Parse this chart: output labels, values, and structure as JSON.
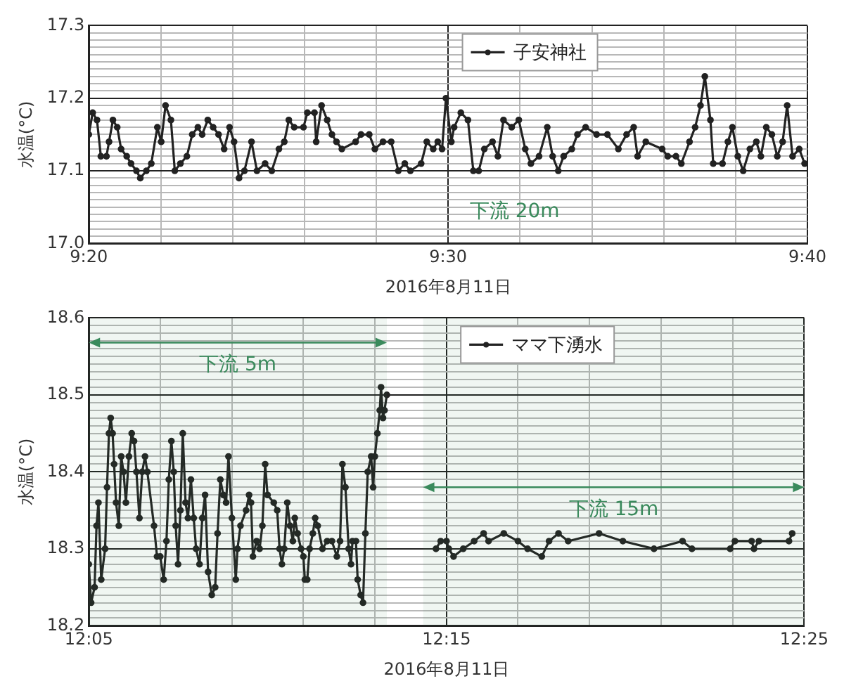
{
  "chart_data": [
    {
      "type": "line",
      "xlabel": "2016年8月11日",
      "ylabel": "水温(°C)",
      "annotations": [
        "下流 20m"
      ],
      "legend": "top",
      "grid": true,
      "marker": "circle",
      "line_style": "solid",
      "xlim": [
        9.3333,
        9.6667
      ],
      "xticks": [
        {
          "value": 9.3333,
          "label": "9:20"
        },
        {
          "value": 9.3667,
          "label": null
        },
        {
          "value": 9.4,
          "label": null
        },
        {
          "value": 9.4333,
          "label": null
        },
        {
          "value": 9.4667,
          "label": null
        },
        {
          "value": 9.5,
          "label": "9:30"
        },
        {
          "value": 9.5333,
          "label": null
        },
        {
          "value": 9.5667,
          "label": null
        },
        {
          "value": 9.6,
          "label": null
        },
        {
          "value": 9.6333,
          "label": null
        },
        {
          "value": 9.6667,
          "label": "9:40"
        }
      ],
      "ylim": [
        17.0,
        17.3
      ],
      "yticks": [
        {
          "value": 17.0,
          "label": "17.0"
        },
        {
          "value": 17.01,
          "label": null
        },
        {
          "value": 17.02,
          "label": null
        },
        {
          "value": 17.03,
          "label": null
        },
        {
          "value": 17.04,
          "label": null
        },
        {
          "value": 17.05,
          "label": null
        },
        {
          "value": 17.06,
          "label": null
        },
        {
          "value": 17.07,
          "label": null
        },
        {
          "value": 17.08,
          "label": null
        },
        {
          "value": 17.09,
          "label": null
        },
        17.1,
        {
          "value": 17.11,
          "label": null
        },
        {
          "value": 17.12,
          "label": null
        },
        {
          "value": 17.13,
          "label": null
        },
        {
          "value": 17.14,
          "label": null
        },
        {
          "value": 17.15,
          "label": null
        },
        {
          "value": 17.16,
          "label": null
        },
        {
          "value": 17.17,
          "label": null
        },
        {
          "value": 17.18,
          "label": null
        },
        {
          "value": 17.19,
          "label": null
        },
        17.2,
        {
          "value": 17.21,
          "label": null
        },
        {
          "value": 17.22,
          "label": null
        },
        {
          "value": 17.23,
          "label": null
        },
        {
          "value": 17.24,
          "label": null
        },
        {
          "value": 17.25,
          "label": null
        },
        {
          "value": 17.26,
          "label": null
        },
        {
          "value": 17.27,
          "label": null
        },
        {
          "value": 17.28,
          "label": null
        },
        {
          "value": 17.29,
          "label": null
        },
        17.3
      ],
      "series": [
        {
          "name": "子安神社",
          "color": "#222222",
          "x": [
            9.3333,
            9.3351,
            9.3371,
            9.3389,
            9.3415,
            9.3427,
            9.3445,
            9.3465,
            9.3483,
            9.3509,
            9.3529,
            9.3554,
            9.3572,
            9.36,
            9.3623,
            9.3651,
            9.3669,
            9.3689,
            9.3714,
            9.3732,
            9.3758,
            9.3788,
            9.3813,
            9.3839,
            9.3859,
            9.3885,
            9.391,
            9.3935,
            9.3961,
            9.3986,
            9.4007,
            9.403,
            9.4055,
            9.4088,
            9.4113,
            9.4151,
            9.4182,
            9.4215,
            9.424,
            9.4261,
            9.4286,
            9.4329,
            9.4347,
            9.438,
            9.4388,
            9.4413,
            9.4439,
            9.4461,
            9.4482,
            9.4507,
            9.4571,
            9.4596,
            9.4634,
            9.466,
            9.4698,
            9.4736,
            9.4769,
            9.4799,
            9.4825,
            9.4875,
            9.4901,
            9.4931,
            9.4952,
            9.4972,
            9.499,
            9.5015,
            9.5028,
            9.5059,
            9.5092,
            9.5117,
            9.5142,
            9.5168,
            9.5206,
            9.5231,
            9.5257,
            9.5295,
            9.5328,
            9.5358,
            9.5384,
            9.5422,
            9.546,
            9.5485,
            9.5511,
            9.5536,
            9.5574,
            9.56,
            9.5638,
            9.5689,
            9.5739,
            9.579,
            9.5828,
            9.5861,
            9.5879,
            9.5917,
            9.5993,
            9.6019,
            9.6057,
            9.6082,
            9.612,
            9.6146,
            9.6171,
            9.6191,
            9.6217,
            9.623,
            9.6273,
            9.6298,
            9.6319,
            9.6344,
            9.6369,
            9.64,
            9.643,
            9.6451,
            9.6476,
            9.6502,
            9.6527,
            9.6552,
            9.6573,
            9.6598,
            9.6629,
            9.6654
          ],
          "values": [
            17.15,
            17.18,
            17.17,
            17.12,
            17.12,
            17.14,
            17.17,
            17.16,
            17.13,
            17.12,
            17.11,
            17.1,
            17.09,
            17.1,
            17.11,
            17.16,
            17.14,
            17.19,
            17.17,
            17.1,
            17.11,
            17.12,
            17.15,
            17.16,
            17.15,
            17.17,
            17.16,
            17.15,
            17.13,
            17.16,
            17.14,
            17.09,
            17.1,
            17.14,
            17.1,
            17.11,
            17.1,
            17.13,
            17.14,
            17.17,
            17.16,
            17.16,
            17.18,
            17.18,
            17.14,
            17.19,
            17.17,
            17.15,
            17.14,
            17.13,
            17.14,
            17.15,
            17.15,
            17.13,
            17.14,
            17.14,
            17.1,
            17.11,
            17.1,
            17.11,
            17.14,
            17.13,
            17.14,
            17.13,
            17.2,
            17.14,
            17.16,
            17.18,
            17.17,
            17.1,
            17.1,
            17.13,
            17.14,
            17.12,
            17.17,
            17.16,
            17.17,
            17.13,
            17.11,
            17.12,
            17.16,
            17.12,
            17.1,
            17.12,
            17.13,
            17.15,
            17.16,
            17.15,
            17.15,
            17.13,
            17.15,
            17.16,
            17.12,
            17.14,
            17.13,
            17.12,
            17.12,
            17.11,
            17.14,
            17.16,
            17.19,
            17.23,
            17.17,
            17.11,
            17.11,
            17.14,
            17.16,
            17.12,
            17.1,
            17.13,
            17.14,
            17.12,
            17.16,
            17.15,
            17.12,
            17.14,
            17.19,
            17.12,
            17.13,
            17.11
          ]
        }
      ]
    },
    {
      "type": "line",
      "xlabel": "2016年8月11日",
      "ylabel": "水温(°C)",
      "legend": "top",
      "grid": true,
      "marker": "circle",
      "line_style": "solid",
      "bands": [
        {
          "axis": "x",
          "from": 12.0833,
          "to": 12.2222,
          "label": "下流 5m",
          "color": "#3a8a5c"
        },
        {
          "axis": "x",
          "from": 12.2391,
          "to": 12.4167,
          "label": "下流 15m",
          "color": "#3a8a5c"
        }
      ],
      "xlim": [
        12.0833,
        12.4167
      ],
      "xticks": [
        {
          "value": 12.0833,
          "label": "12:05"
        },
        {
          "value": 12.1167,
          "label": null
        },
        {
          "value": 12.15,
          "label": null
        },
        {
          "value": 12.1833,
          "label": null
        },
        {
          "value": 12.2167,
          "label": null
        },
        {
          "value": 12.25,
          "label": "12:15"
        },
        {
          "value": 12.2833,
          "label": null
        },
        {
          "value": 12.3167,
          "label": null
        },
        {
          "value": 12.35,
          "label": null
        },
        {
          "value": 12.3833,
          "label": null
        },
        {
          "value": 12.4167,
          "label": "12:25"
        }
      ],
      "ylim": [
        18.2,
        18.6
      ],
      "yticks": [
        18.2,
        {
          "value": 18.21,
          "label": null
        },
        {
          "value": 18.22,
          "label": null
        },
        {
          "value": 18.23,
          "label": null
        },
        {
          "value": 18.24,
          "label": null
        },
        {
          "value": 18.25,
          "label": null
        },
        {
          "value": 18.26,
          "label": null
        },
        {
          "value": 18.27,
          "label": null
        },
        {
          "value": 18.28,
          "label": null
        },
        {
          "value": 18.29,
          "label": null
        },
        18.3,
        {
          "value": 18.31,
          "label": null
        },
        {
          "value": 18.32,
          "label": null
        },
        {
          "value": 18.33,
          "label": null
        },
        {
          "value": 18.34,
          "label": null
        },
        {
          "value": 18.35,
          "label": null
        },
        {
          "value": 18.36,
          "label": null
        },
        {
          "value": 18.37,
          "label": null
        },
        {
          "value": 18.38,
          "label": null
        },
        {
          "value": 18.39,
          "label": null
        },
        18.4,
        {
          "value": 18.41,
          "label": null
        },
        {
          "value": 18.42,
          "label": null
        },
        {
          "value": 18.43,
          "label": null
        },
        {
          "value": 18.44,
          "label": null
        },
        {
          "value": 18.45,
          "label": null
        },
        {
          "value": 18.46,
          "label": null
        },
        {
          "value": 18.47,
          "label": null
        },
        {
          "value": 18.48,
          "label": null
        },
        {
          "value": 18.49,
          "label": null
        },
        18.5,
        {
          "value": 18.51,
          "label": null
        },
        {
          "value": 18.52,
          "label": null
        },
        {
          "value": 18.53,
          "label": null
        },
        {
          "value": 18.54,
          "label": null
        },
        {
          "value": 18.55,
          "label": null
        },
        {
          "value": 18.56,
          "label": null
        },
        {
          "value": 18.57,
          "label": null
        },
        {
          "value": 18.58,
          "label": null
        },
        {
          "value": 18.59,
          "label": null
        },
        18.6
      ],
      "series": [
        {
          "name": "ママ下湧水",
          "color": "#222222",
          "x": [
            12.0833,
            12.0844,
            12.086,
            12.0869,
            12.0878,
            12.0891,
            12.0909,
            12.0918,
            12.0927,
            12.0935,
            12.0944,
            12.0951,
            12.096,
            12.0973,
            12.0984,
            12.0995,
            12.1006,
            12.102,
            12.1033,
            12.1044,
            12.1055,
            12.1069,
            12.1082,
            12.1095,
            12.1106,
            12.1137,
            12.1151,
            12.1166,
            12.1182,
            12.1195,
            12.1206,
            12.1218,
            12.1229,
            12.1238,
            12.1249,
            12.126,
            12.1271,
            12.1284,
            12.1295,
            12.1309,
            12.1322,
            12.1333,
            12.1349,
            12.1362,
            12.1375,
            12.1389,
            12.1406,
            12.1422,
            12.1433,
            12.1446,
            12.146,
            12.1473,
            12.1484,
            12.15,
            12.1518,
            12.1526,
            12.154,
            12.1566,
            12.158,
            12.1589,
            12.1598,
            12.1615,
            12.1629,
            12.1642,
            12.1655,
            12.1666,
            12.1695,
            12.1711,
            12.1722,
            12.1733,
            12.1744,
            12.1758,
            12.1771,
            12.1784,
            12.1793,
            12.1806,
            12.1822,
            12.1833,
            12.184,
            12.1851,
            12.1862,
            12.1877,
            12.1888,
            12.19,
            12.1922,
            12.1944,
            12.1966,
            12.1989,
            12.2004,
            12.2015,
            12.2029,
            12.2044,
            12.2055,
            12.2062,
            12.2078,
            12.2086,
            12.21,
            12.2111,
            12.2122,
            12.2133,
            12.2149,
            12.2158,
            12.2166,
            12.2178,
            12.2189,
            12.2195,
            12.2204,
            12.2211,
            12.2222,
            12.235,
            12.2451,
            12.2473,
            12.25,
            12.2511,
            12.2533,
            12.2578,
            12.2629,
            12.2673,
            12.2696,
            12.2767,
            12.2833,
            12.2878,
            12.2944,
            12.2978,
            12.3022,
            12.3067,
            12.3211,
            12.3322,
            12.3467,
            12.36,
            12.3644,
            12.3822,
            12.3844,
            12.3922,
            12.3933,
            12.3956,
            12.4096,
            12.4111
          ],
          "values": [
            18.28,
            18.23,
            18.25,
            18.33,
            18.36,
            18.26,
            18.3,
            18.38,
            18.45,
            18.47,
            18.45,
            18.41,
            18.36,
            18.33,
            18.42,
            18.4,
            18.36,
            18.42,
            18.45,
            18.44,
            18.4,
            18.34,
            18.4,
            18.42,
            18.4,
            18.33,
            18.29,
            18.29,
            18.26,
            18.31,
            18.39,
            18.44,
            18.4,
            18.33,
            18.28,
            18.35,
            18.45,
            18.36,
            18.34,
            18.39,
            18.34,
            18.3,
            18.28,
            18.34,
            18.37,
            18.27,
            18.24,
            18.25,
            18.32,
            18.39,
            18.37,
            18.36,
            18.42,
            18.34,
            18.26,
            18.3,
            18.33,
            18.35,
            18.37,
            18.36,
            18.29,
            18.31,
            18.3,
            18.33,
            18.41,
            18.37,
            18.36,
            18.35,
            18.3,
            18.28,
            18.3,
            18.36,
            18.33,
            18.31,
            18.34,
            18.32,
            18.3,
            18.29,
            18.26,
            18.26,
            18.3,
            18.32,
            18.34,
            18.33,
            18.3,
            18.31,
            18.31,
            18.29,
            18.31,
            18.41,
            18.38,
            18.3,
            18.28,
            18.31,
            18.31,
            18.26,
            18.24,
            18.23,
            18.32,
            18.4,
            18.42,
            18.38,
            18.42,
            18.45,
            18.48,
            18.51,
            18.47,
            18.48,
            18.5,
            null,
            18.3,
            18.31,
            18.31,
            18.3,
            18.29,
            18.3,
            18.31,
            18.32,
            18.31,
            18.32,
            18.31,
            18.3,
            18.29,
            18.31,
            18.32,
            18.31,
            18.32,
            18.31,
            18.3,
            18.31,
            18.3,
            18.3,
            18.31,
            18.31,
            18.3,
            18.31,
            18.31,
            18.32
          ]
        }
      ]
    }
  ]
}
